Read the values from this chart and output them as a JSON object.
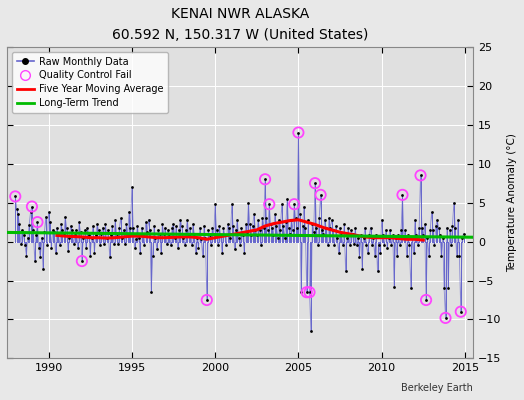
{
  "title": "KENAI NWR ALASKA",
  "subtitle": "60.592 N, 150.317 W (United States)",
  "ylabel": "Temperature Anomaly (°C)",
  "credit": "Berkeley Earth",
  "xlim": [
    1987.5,
    2015.5
  ],
  "ylim": [
    -15,
    25
  ],
  "yticks": [
    -15,
    -10,
    -5,
    0,
    5,
    10,
    15,
    20,
    25
  ],
  "xticks": [
    1990,
    1995,
    2000,
    2005,
    2010,
    2015
  ],
  "bg_color": "#e8e8e8",
  "plot_bg_color": "#e0e0e0",
  "grid_color": "#ffffff",
  "raw_line_color": "#6666cc",
  "raw_dot_color": "#000000",
  "qc_fail_color": "#ff44ff",
  "moving_avg_color": "#ff0000",
  "trend_color": "#00bb00",
  "trend_slope": -0.022,
  "trend_intercept_at_2000": 0.9,
  "trend_x_start": 1987.5,
  "trend_x_end": 2015.5,
  "raw_data": [
    [
      1988.0,
      5.8
    ],
    [
      1988.083,
      4.2
    ],
    [
      1988.167,
      3.5
    ],
    [
      1988.25,
      2.2
    ],
    [
      1988.333,
      -0.3
    ],
    [
      1988.417,
      1.5
    ],
    [
      1988.5,
      0.8
    ],
    [
      1988.583,
      -0.5
    ],
    [
      1988.667,
      -1.8
    ],
    [
      1988.75,
      0.5
    ],
    [
      1988.833,
      2.1
    ],
    [
      1988.917,
      3.8
    ],
    [
      1989.0,
      4.5
    ],
    [
      1989.083,
      1.5
    ],
    [
      1989.167,
      -2.5
    ],
    [
      1989.25,
      0.8
    ],
    [
      1989.333,
      2.5
    ],
    [
      1989.417,
      -0.8
    ],
    [
      1989.5,
      -2.0
    ],
    [
      1989.583,
      0.5
    ],
    [
      1989.667,
      -3.5
    ],
    [
      1989.75,
      1.2
    ],
    [
      1989.833,
      3.2
    ],
    [
      1989.917,
      -0.5
    ],
    [
      1990.0,
      3.8
    ],
    [
      1990.083,
      2.5
    ],
    [
      1990.167,
      -0.8
    ],
    [
      1990.25,
      1.5
    ],
    [
      1990.333,
      1.2
    ],
    [
      1990.417,
      -1.5
    ],
    [
      1990.5,
      1.8
    ],
    [
      1990.583,
      0.8
    ],
    [
      1990.667,
      -0.5
    ],
    [
      1990.75,
      2.2
    ],
    [
      1990.833,
      1.5
    ],
    [
      1990.917,
      0.8
    ],
    [
      1991.0,
      3.2
    ],
    [
      1991.083,
      1.8
    ],
    [
      1991.167,
      -1.2
    ],
    [
      1991.25,
      0.5
    ],
    [
      1991.333,
      2.0
    ],
    [
      1991.417,
      1.5
    ],
    [
      1991.5,
      -0.3
    ],
    [
      1991.583,
      0.8
    ],
    [
      1991.667,
      1.5
    ],
    [
      1991.75,
      -0.8
    ],
    [
      1991.833,
      2.5
    ],
    [
      1991.917,
      1.2
    ],
    [
      1992.0,
      -2.5
    ],
    [
      1992.083,
      0.5
    ],
    [
      1992.167,
      1.5
    ],
    [
      1992.25,
      -0.8
    ],
    [
      1992.333,
      1.8
    ],
    [
      1992.417,
      0.8
    ],
    [
      1992.5,
      -1.8
    ],
    [
      1992.583,
      0.5
    ],
    [
      1992.667,
      2.0
    ],
    [
      1992.75,
      -1.5
    ],
    [
      1992.833,
      0.8
    ],
    [
      1992.917,
      2.2
    ],
    [
      1993.0,
      1.5
    ],
    [
      1993.083,
      -0.5
    ],
    [
      1993.167,
      1.0
    ],
    [
      1993.25,
      1.8
    ],
    [
      1993.333,
      -0.3
    ],
    [
      1993.417,
      2.2
    ],
    [
      1993.5,
      0.5
    ],
    [
      1993.583,
      1.5
    ],
    [
      1993.667,
      -2.0
    ],
    [
      1993.75,
      0.8
    ],
    [
      1993.833,
      2.0
    ],
    [
      1993.917,
      -0.3
    ],
    [
      1994.0,
      2.8
    ],
    [
      1994.083,
      1.0
    ],
    [
      1994.167,
      -0.3
    ],
    [
      1994.25,
      1.8
    ],
    [
      1994.333,
      3.0
    ],
    [
      1994.417,
      0.5
    ],
    [
      1994.5,
      1.5
    ],
    [
      1994.583,
      -0.3
    ],
    [
      1994.667,
      2.2
    ],
    [
      1994.75,
      1.0
    ],
    [
      1994.833,
      3.8
    ],
    [
      1994.917,
      1.8
    ],
    [
      1995.0,
      7.0
    ],
    [
      1995.083,
      1.8
    ],
    [
      1995.167,
      -0.8
    ],
    [
      1995.25,
      0.3
    ],
    [
      1995.333,
      2.0
    ],
    [
      1995.417,
      0.5
    ],
    [
      1995.5,
      -1.5
    ],
    [
      1995.583,
      1.8
    ],
    [
      1995.667,
      0.8
    ],
    [
      1995.75,
      -0.5
    ],
    [
      1995.833,
      2.5
    ],
    [
      1995.917,
      1.2
    ],
    [
      1996.0,
      2.8
    ],
    [
      1996.083,
      1.5
    ],
    [
      1996.167,
      -6.5
    ],
    [
      1996.25,
      -1.8
    ],
    [
      1996.333,
      2.0
    ],
    [
      1996.417,
      0.5
    ],
    [
      1996.5,
      -1.0
    ],
    [
      1996.583,
      1.5
    ],
    [
      1996.667,
      1.0
    ],
    [
      1996.75,
      -1.5
    ],
    [
      1996.833,
      2.2
    ],
    [
      1996.917,
      1.0
    ],
    [
      1997.0,
      1.8
    ],
    [
      1997.083,
      -0.3
    ],
    [
      1997.167,
      1.5
    ],
    [
      1997.25,
      1.0
    ],
    [
      1997.333,
      -0.5
    ],
    [
      1997.417,
      1.8
    ],
    [
      1997.5,
      2.2
    ],
    [
      1997.583,
      0.5
    ],
    [
      1997.667,
      2.0
    ],
    [
      1997.75,
      -0.8
    ],
    [
      1997.833,
      1.5
    ],
    [
      1997.917,
      2.8
    ],
    [
      1998.0,
      2.0
    ],
    [
      1998.083,
      0.5
    ],
    [
      1998.167,
      -0.5
    ],
    [
      1998.25,
      1.5
    ],
    [
      1998.333,
      2.8
    ],
    [
      1998.417,
      0.8
    ],
    [
      1998.5,
      1.8
    ],
    [
      1998.583,
      -0.5
    ],
    [
      1998.667,
      2.2
    ],
    [
      1998.75,
      1.0
    ],
    [
      1998.833,
      -1.5
    ],
    [
      1998.917,
      0.5
    ],
    [
      1999.0,
      -0.8
    ],
    [
      1999.083,
      1.8
    ],
    [
      1999.167,
      0.3
    ],
    [
      1999.25,
      -1.8
    ],
    [
      1999.333,
      2.0
    ],
    [
      1999.417,
      0.5
    ],
    [
      1999.5,
      -7.5
    ],
    [
      1999.583,
      1.5
    ],
    [
      1999.667,
      0.8
    ],
    [
      1999.75,
      -0.5
    ],
    [
      1999.833,
      1.8
    ],
    [
      1999.917,
      1.0
    ],
    [
      2000.0,
      4.8
    ],
    [
      2000.083,
      1.5
    ],
    [
      2000.167,
      -0.5
    ],
    [
      2000.25,
      2.0
    ],
    [
      2000.333,
      0.8
    ],
    [
      2000.417,
      -1.5
    ],
    [
      2000.5,
      1.8
    ],
    [
      2000.583,
      0.8
    ],
    [
      2000.667,
      -0.5
    ],
    [
      2000.75,
      2.2
    ],
    [
      2000.833,
      1.8
    ],
    [
      2000.917,
      0.5
    ],
    [
      2001.0,
      4.8
    ],
    [
      2001.083,
      2.0
    ],
    [
      2001.167,
      -1.0
    ],
    [
      2001.25,
      1.5
    ],
    [
      2001.333,
      2.8
    ],
    [
      2001.417,
      0.5
    ],
    [
      2001.5,
      -0.5
    ],
    [
      2001.583,
      1.8
    ],
    [
      2001.667,
      0.8
    ],
    [
      2001.75,
      -1.5
    ],
    [
      2001.833,
      2.2
    ],
    [
      2001.917,
      1.2
    ],
    [
      2002.0,
      5.0
    ],
    [
      2002.083,
      2.2
    ],
    [
      2002.167,
      0.8
    ],
    [
      2002.25,
      2.0
    ],
    [
      2002.333,
      3.5
    ],
    [
      2002.417,
      1.5
    ],
    [
      2002.5,
      0.8
    ],
    [
      2002.583,
      2.8
    ],
    [
      2002.667,
      1.5
    ],
    [
      2002.75,
      -0.5
    ],
    [
      2002.833,
      3.0
    ],
    [
      2002.917,
      1.8
    ],
    [
      2003.0,
      8.0
    ],
    [
      2003.083,
      3.0
    ],
    [
      2003.167,
      1.5
    ],
    [
      2003.25,
      4.8
    ],
    [
      2003.333,
      2.2
    ],
    [
      2003.417,
      1.8
    ],
    [
      2003.5,
      0.8
    ],
    [
      2003.583,
      3.5
    ],
    [
      2003.667,
      2.0
    ],
    [
      2003.75,
      0.5
    ],
    [
      2003.833,
      2.8
    ],
    [
      2003.917,
      1.5
    ],
    [
      2004.0,
      4.8
    ],
    [
      2004.083,
      2.0
    ],
    [
      2004.167,
      0.5
    ],
    [
      2004.25,
      2.5
    ],
    [
      2004.333,
      5.5
    ],
    [
      2004.417,
      1.8
    ],
    [
      2004.5,
      1.0
    ],
    [
      2004.583,
      2.8
    ],
    [
      2004.667,
      1.5
    ],
    [
      2004.75,
      4.8
    ],
    [
      2004.833,
      3.0
    ],
    [
      2004.917,
      1.8
    ],
    [
      2005.0,
      14.0
    ],
    [
      2005.083,
      3.5
    ],
    [
      2005.167,
      -6.5
    ],
    [
      2005.25,
      2.0
    ],
    [
      2005.333,
      4.5
    ],
    [
      2005.417,
      1.8
    ],
    [
      2005.5,
      -6.5
    ],
    [
      2005.583,
      2.8
    ],
    [
      2005.667,
      -6.5
    ],
    [
      2005.75,
      -11.5
    ],
    [
      2005.833,
      2.2
    ],
    [
      2005.917,
      1.2
    ],
    [
      2006.0,
      7.5
    ],
    [
      2006.083,
      1.8
    ],
    [
      2006.167,
      -0.5
    ],
    [
      2006.25,
      3.0
    ],
    [
      2006.333,
      6.0
    ],
    [
      2006.417,
      1.5
    ],
    [
      2006.5,
      1.0
    ],
    [
      2006.583,
      2.8
    ],
    [
      2006.667,
      1.8
    ],
    [
      2006.75,
      -0.5
    ],
    [
      2006.833,
      3.0
    ],
    [
      2006.917,
      1.8
    ],
    [
      2007.0,
      2.8
    ],
    [
      2007.083,
      1.5
    ],
    [
      2007.167,
      -0.5
    ],
    [
      2007.25,
      2.0
    ],
    [
      2007.333,
      0.5
    ],
    [
      2007.417,
      -1.5
    ],
    [
      2007.5,
      1.8
    ],
    [
      2007.583,
      0.8
    ],
    [
      2007.667,
      -0.5
    ],
    [
      2007.75,
      2.2
    ],
    [
      2007.833,
      -3.8
    ],
    [
      2007.917,
      0.5
    ],
    [
      2008.0,
      1.8
    ],
    [
      2008.083,
      -0.5
    ],
    [
      2008.167,
      1.5
    ],
    [
      2008.25,
      1.0
    ],
    [
      2008.333,
      -0.3
    ],
    [
      2008.417,
      1.8
    ],
    [
      2008.5,
      -0.5
    ],
    [
      2008.583,
      0.5
    ],
    [
      2008.667,
      -2.0
    ],
    [
      2008.75,
      0.8
    ],
    [
      2008.833,
      -3.5
    ],
    [
      2008.917,
      0.5
    ],
    [
      2009.0,
      1.8
    ],
    [
      2009.083,
      -0.5
    ],
    [
      2009.167,
      -1.5
    ],
    [
      2009.25,
      0.8
    ],
    [
      2009.333,
      1.8
    ],
    [
      2009.417,
      -0.5
    ],
    [
      2009.5,
      0.5
    ],
    [
      2009.583,
      -1.8
    ],
    [
      2009.667,
      0.8
    ],
    [
      2009.75,
      -3.8
    ],
    [
      2009.833,
      -0.5
    ],
    [
      2009.917,
      -1.5
    ],
    [
      2010.0,
      2.8
    ],
    [
      2010.083,
      0.8
    ],
    [
      2010.167,
      -0.5
    ],
    [
      2010.25,
      1.5
    ],
    [
      2010.333,
      -0.8
    ],
    [
      2010.417,
      0.5
    ],
    [
      2010.5,
      1.5
    ],
    [
      2010.583,
      -0.5
    ],
    [
      2010.667,
      0.8
    ],
    [
      2010.75,
      -5.8
    ],
    [
      2010.833,
      0.5
    ],
    [
      2010.917,
      -1.8
    ],
    [
      2011.0,
      0.8
    ],
    [
      2011.083,
      -0.5
    ],
    [
      2011.167,
      1.5
    ],
    [
      2011.25,
      6.0
    ],
    [
      2011.333,
      0.5
    ],
    [
      2011.417,
      1.5
    ],
    [
      2011.5,
      -1.8
    ],
    [
      2011.583,
      0.8
    ],
    [
      2011.667,
      -0.5
    ],
    [
      2011.75,
      -6.0
    ],
    [
      2011.833,
      0.5
    ],
    [
      2011.917,
      -1.5
    ],
    [
      2012.0,
      2.8
    ],
    [
      2012.083,
      0.8
    ],
    [
      2012.167,
      -0.5
    ],
    [
      2012.25,
      1.8
    ],
    [
      2012.333,
      8.5
    ],
    [
      2012.417,
      1.8
    ],
    [
      2012.5,
      0.8
    ],
    [
      2012.583,
      2.2
    ],
    [
      2012.667,
      -7.5
    ],
    [
      2012.75,
      0.5
    ],
    [
      2012.833,
      -1.8
    ],
    [
      2012.917,
      1.5
    ],
    [
      2013.0,
      3.8
    ],
    [
      2013.083,
      1.5
    ],
    [
      2013.167,
      -0.5
    ],
    [
      2013.25,
      2.0
    ],
    [
      2013.333,
      2.8
    ],
    [
      2013.417,
      1.8
    ],
    [
      2013.5,
      0.8
    ],
    [
      2013.583,
      -1.8
    ],
    [
      2013.667,
      0.5
    ],
    [
      2013.75,
      -6.0
    ],
    [
      2013.833,
      -9.8
    ],
    [
      2013.917,
      1.8
    ],
    [
      2014.0,
      -6.0
    ],
    [
      2014.083,
      1.5
    ],
    [
      2014.167,
      -0.5
    ],
    [
      2014.25,
      2.0
    ],
    [
      2014.333,
      5.0
    ],
    [
      2014.417,
      1.8
    ],
    [
      2014.5,
      -1.8
    ],
    [
      2014.583,
      2.8
    ],
    [
      2014.667,
      -1.8
    ],
    [
      2014.75,
      -9.0
    ],
    [
      2014.833,
      0.5
    ],
    [
      2014.917,
      1.0
    ]
  ],
  "qc_fail_points": [
    [
      1988.0,
      5.8
    ],
    [
      1989.0,
      4.5
    ],
    [
      1989.333,
      2.5
    ],
    [
      1992.0,
      -2.5
    ],
    [
      1999.5,
      -7.5
    ],
    [
      2003.0,
      8.0
    ],
    [
      2003.25,
      4.8
    ],
    [
      2004.75,
      4.8
    ],
    [
      2005.0,
      14.0
    ],
    [
      2005.5,
      -6.5
    ],
    [
      2005.667,
      -6.5
    ],
    [
      2006.0,
      7.5
    ],
    [
      2006.333,
      6.0
    ],
    [
      2011.25,
      6.0
    ],
    [
      2012.333,
      8.5
    ],
    [
      2012.667,
      -7.5
    ],
    [
      2013.833,
      -9.8
    ],
    [
      2014.75,
      -9.0
    ]
  ],
  "moving_avg": [
    [
      1990.5,
      0.8
    ],
    [
      1991.0,
      0.7
    ],
    [
      1991.5,
      0.65
    ],
    [
      1992.0,
      0.6
    ],
    [
      1992.5,
      0.5
    ],
    [
      1993.0,
      0.5
    ],
    [
      1993.5,
      0.45
    ],
    [
      1994.0,
      0.5
    ],
    [
      1994.5,
      0.6
    ],
    [
      1995.0,
      0.7
    ],
    [
      1995.5,
      0.7
    ],
    [
      1996.0,
      0.6
    ],
    [
      1996.5,
      0.5
    ],
    [
      1997.0,
      0.5
    ],
    [
      1997.5,
      0.55
    ],
    [
      1998.0,
      0.6
    ],
    [
      1998.5,
      0.6
    ],
    [
      1999.0,
      0.5
    ],
    [
      1999.5,
      0.3
    ],
    [
      2000.0,
      0.5
    ],
    [
      2000.5,
      0.7
    ],
    [
      2001.0,
      0.9
    ],
    [
      2001.5,
      1.1
    ],
    [
      2002.0,
      1.3
    ],
    [
      2002.5,
      1.5
    ],
    [
      2003.0,
      2.0
    ],
    [
      2003.5,
      2.3
    ],
    [
      2004.0,
      2.5
    ],
    [
      2004.5,
      2.7
    ],
    [
      2005.0,
      2.8
    ],
    [
      2005.5,
      2.5
    ],
    [
      2006.0,
      2.2
    ],
    [
      2006.5,
      1.8
    ],
    [
      2007.0,
      1.5
    ],
    [
      2007.5,
      1.2
    ],
    [
      2008.0,
      1.0
    ],
    [
      2008.5,
      0.8
    ],
    [
      2009.0,
      0.6
    ],
    [
      2009.5,
      0.5
    ],
    [
      2010.0,
      0.5
    ],
    [
      2010.5,
      0.5
    ],
    [
      2011.0,
      0.4
    ],
    [
      2011.5,
      0.3
    ],
    [
      2012.0,
      0.3
    ],
    [
      2012.5,
      0.2
    ]
  ]
}
